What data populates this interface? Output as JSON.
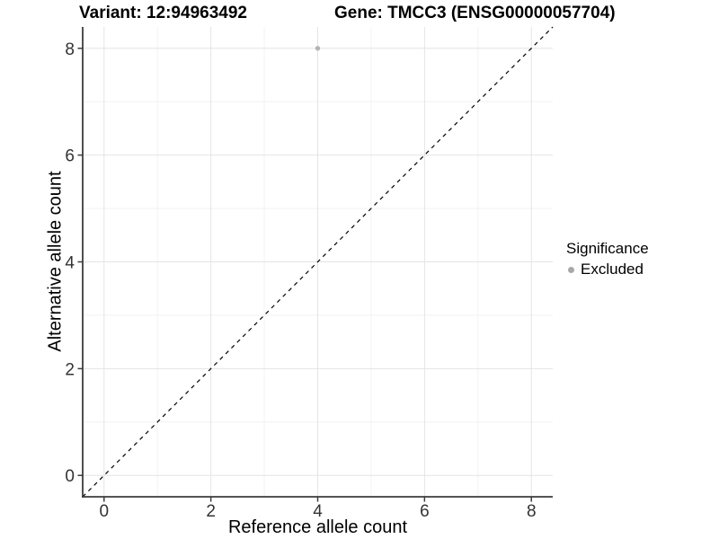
{
  "titles": {
    "variant": "Variant: 12:94963492",
    "gene": "Gene: TMCC3 (ENSG00000057704)"
  },
  "legend": {
    "title": "Significance",
    "items": [
      {
        "label": "Excluded",
        "color": "#a8a8a8"
      }
    ]
  },
  "colors": {
    "background": "#ffffff",
    "grid_major": "#e4e4e4",
    "grid_minor": "#f2f2f2",
    "axis_line": "#3c3c3c",
    "tick_label": "#333333",
    "reference_line": "#000000",
    "point": "#b4b4b4"
  },
  "chart_data": {
    "type": "scatter",
    "title": "Variant: 12:94963492   Gene: TMCC3 (ENSG00000057704)",
    "xlabel": "Reference allele count",
    "ylabel": "Alternative allele count",
    "xlim": [
      -0.4,
      8.4
    ],
    "ylim": [
      -0.4,
      8.4
    ],
    "x_ticks": [
      0,
      2,
      4,
      6,
      8
    ],
    "y_ticks": [
      0,
      2,
      4,
      6,
      8
    ],
    "x_minor_ticks": [
      1,
      3,
      5,
      7
    ],
    "y_minor_ticks": [
      1,
      3,
      5,
      7
    ],
    "grid": true,
    "legend_position": "right",
    "series": [
      {
        "name": "Excluded",
        "color": "#b4b4b4",
        "points": [
          {
            "x": 4,
            "y": 8
          }
        ]
      }
    ],
    "reference_line": {
      "slope": 1,
      "intercept": 0,
      "style": "dashed",
      "color": "#000000"
    }
  }
}
